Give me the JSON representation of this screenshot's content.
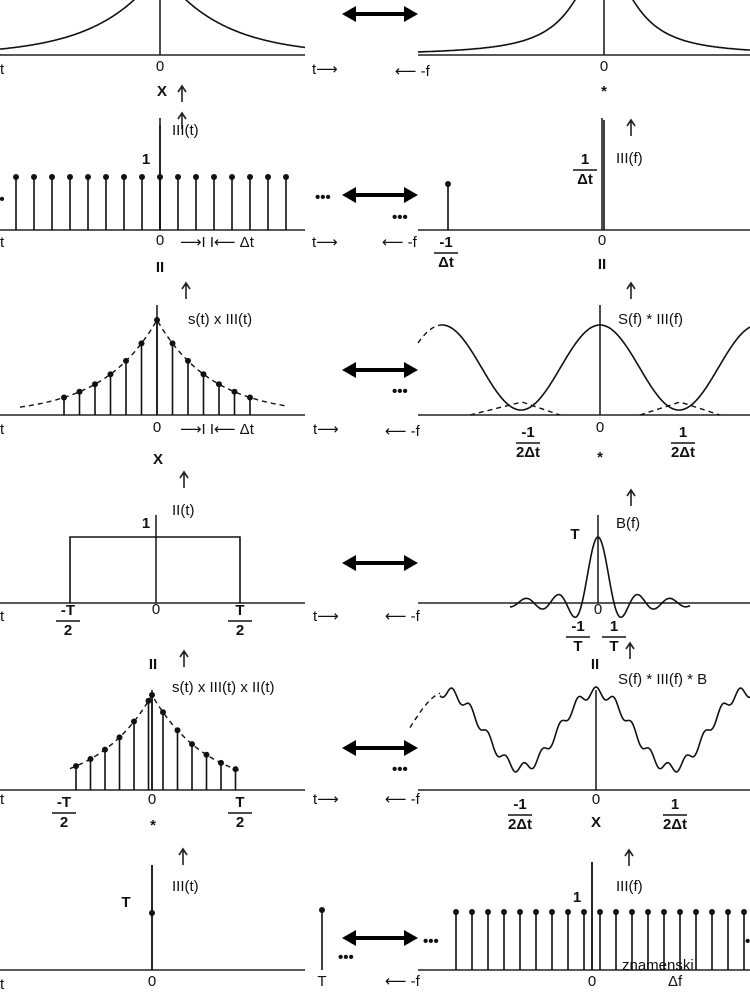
{
  "rows": [
    {
      "labels": [
        "t",
        "0",
        "t⟶",
        "X",
        "⟵ -f",
        "0",
        "*"
      ]
    },
    {
      "labels": [
        "III(t)",
        "1",
        "•",
        "•••",
        "t",
        "0",
        "⟶I I⟵ Δt",
        "t⟶",
        "II",
        "III(f)",
        {
          "num": "1",
          "den": "Δt"
        },
        "•••",
        "⟵ -f",
        {
          "num": "-1",
          "den": "Δt"
        },
        "0",
        "II"
      ]
    },
    {
      "labels": [
        "s(t) x III(t)",
        "t",
        "0",
        "⟶I I⟵ Δt",
        "t⟶",
        "X",
        "•••",
        "S(f) * III(f)",
        "⟵ -f",
        {
          "num": "-1",
          "den": "2Δt"
        },
        "0",
        {
          "num": "1",
          "den": "2Δt"
        },
        "*"
      ]
    },
    {
      "labels": [
        "II(t)",
        "1",
        "t",
        {
          "num": "-T",
          "den": "2"
        },
        "0",
        {
          "num": "T",
          "den": "2"
        },
        "t⟶",
        "B(f)",
        "T",
        "⟵ -f",
        "0",
        {
          "num": "-1",
          "den": "T"
        },
        {
          "num": "1",
          "den": "T"
        }
      ]
    },
    {
      "labels": [
        "II",
        "s(t) x III(t) x II(t)",
        "t",
        {
          "num": "-T",
          "den": "2"
        },
        "0",
        {
          "num": "T",
          "den": "2"
        },
        "t⟶",
        "*",
        "II",
        "S(f) * III(f) * B",
        "•••",
        "⟵ -f",
        {
          "num": "-1",
          "den": "2Δt"
        },
        "0",
        {
          "num": "1",
          "den": "2Δt"
        },
        "X"
      ]
    },
    {
      "labels": [
        "III(t)",
        "T",
        "t",
        "0",
        "T",
        "•••",
        "III(f)",
        "1",
        "•••",
        "⟵ -f",
        "0",
        "Δf",
        "•••",
        "znamenski"
      ]
    }
  ]
}
